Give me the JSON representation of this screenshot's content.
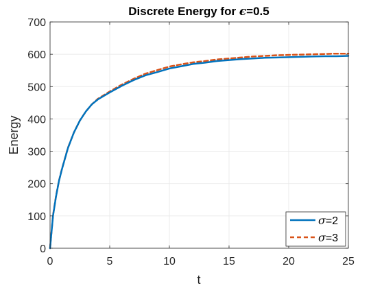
{
  "chart_data": {
    "type": "line",
    "title": {
      "prefix": "Discrete Energy for ",
      "symbol": "ϵ",
      "suffix": "=0.5"
    },
    "xlabel": "t",
    "ylabel": "Energy",
    "xlim": [
      0,
      25
    ],
    "ylim": [
      0,
      700
    ],
    "xticks": [
      0,
      5,
      10,
      15,
      20,
      25
    ],
    "yticks": [
      0,
      100,
      200,
      300,
      400,
      500,
      600,
      700
    ],
    "grid": true,
    "legend_position": "bottom-right",
    "series": [
      {
        "name": "σ=2",
        "name_symbol": "σ",
        "name_suffix": "=2",
        "color": "#0072BD",
        "style": "solid",
        "x": [
          0,
          0.25,
          0.5,
          0.75,
          1,
          1.5,
          2,
          2.5,
          3,
          3.5,
          4,
          5,
          6,
          7,
          8,
          9,
          10,
          11,
          12,
          13,
          14,
          15,
          16,
          17,
          18,
          19,
          20,
          21,
          22,
          23,
          24,
          25
        ],
        "y": [
          0,
          100,
          160,
          208,
          245,
          310,
          358,
          395,
          423,
          445,
          460,
          482,
          502,
          520,
          535,
          545,
          556,
          563,
          570,
          574,
          579,
          582,
          585,
          587,
          589,
          590,
          591,
          592,
          593,
          594,
          594,
          595
        ]
      },
      {
        "name": "σ=3",
        "name_symbol": "σ",
        "name_suffix": "=3",
        "color": "#D95319",
        "style": "dashed",
        "x": [
          0,
          0.25,
          0.5,
          0.75,
          1,
          1.5,
          2,
          2.5,
          3,
          3.5,
          4,
          5,
          6,
          7,
          8,
          9,
          10,
          11,
          12,
          13,
          14,
          15,
          16,
          17,
          18,
          19,
          20,
          21,
          22,
          23,
          24,
          25
        ],
        "y": [
          0,
          102,
          162,
          209,
          246,
          311,
          358,
          395,
          423,
          445,
          462,
          485,
          506,
          524,
          540,
          551,
          562,
          569,
          575,
          579,
          584,
          587,
          590,
          593,
          595,
          597,
          598,
          599,
          600,
          601,
          602,
          602
        ]
      }
    ]
  }
}
